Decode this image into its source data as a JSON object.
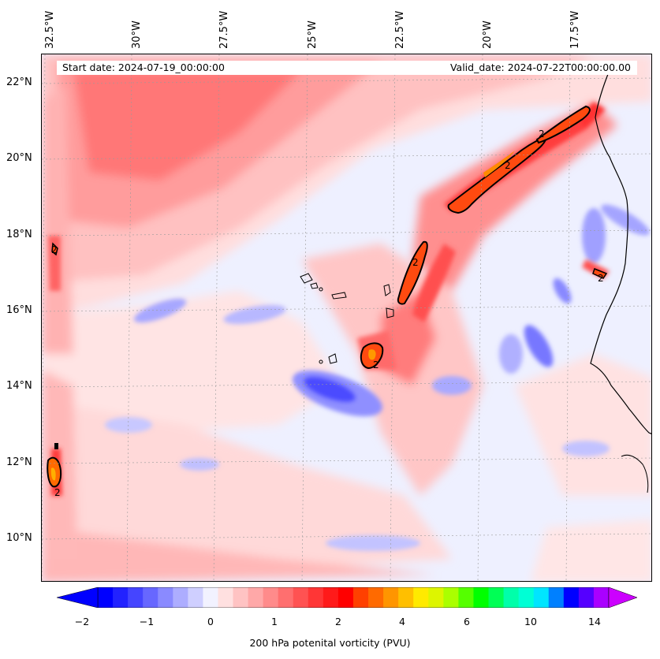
{
  "map": {
    "start_label": "Start date: 2024-07-19_00:00:00",
    "valid_label": "Valid_date: 2024-07-22T00:00:00.00",
    "longitude_labels": [
      "32.5°W",
      "30°W",
      "27.5°W",
      "25°W",
      "22.5°W",
      "20°W",
      "17.5°W"
    ],
    "latitude_labels": [
      "22°N",
      "20°N",
      "18°N",
      "16°N",
      "14°N",
      "12°N",
      "10°N"
    ],
    "contour_label": "2",
    "contour_level": 2,
    "variable": "200 hPa potential vorticity"
  },
  "colorbar": {
    "label": "200 hPa potenital vorticity (PVU)",
    "ticks": [
      "−2",
      "−1",
      "0",
      "1",
      "2",
      "4",
      "6",
      "10",
      "14"
    ],
    "colors": [
      "#0000ff",
      "#2222ff",
      "#4545ff",
      "#6767ff",
      "#8a8aff",
      "#adadff",
      "#cfcfff",
      "#f2f2ff",
      "#ffe0e0",
      "#ffc3c3",
      "#ffa8a8",
      "#ff8b8b",
      "#ff6f6f",
      "#ff5252",
      "#ff3636",
      "#ff1a1a",
      "#ff0000",
      "#ff4000",
      "#ff6a00",
      "#ff9500",
      "#ffbf00",
      "#ffea00",
      "#ddf500",
      "#aaff00",
      "#55ff00",
      "#00ff00",
      "#00ff55",
      "#00ffaa",
      "#00ffd5",
      "#00e5ff",
      "#0080ff",
      "#0000ff",
      "#5500ff",
      "#aa00ff"
    ],
    "under_color": "#0000ff",
    "over_color": "#cc00ff"
  },
  "coastline_color": "#000000"
}
